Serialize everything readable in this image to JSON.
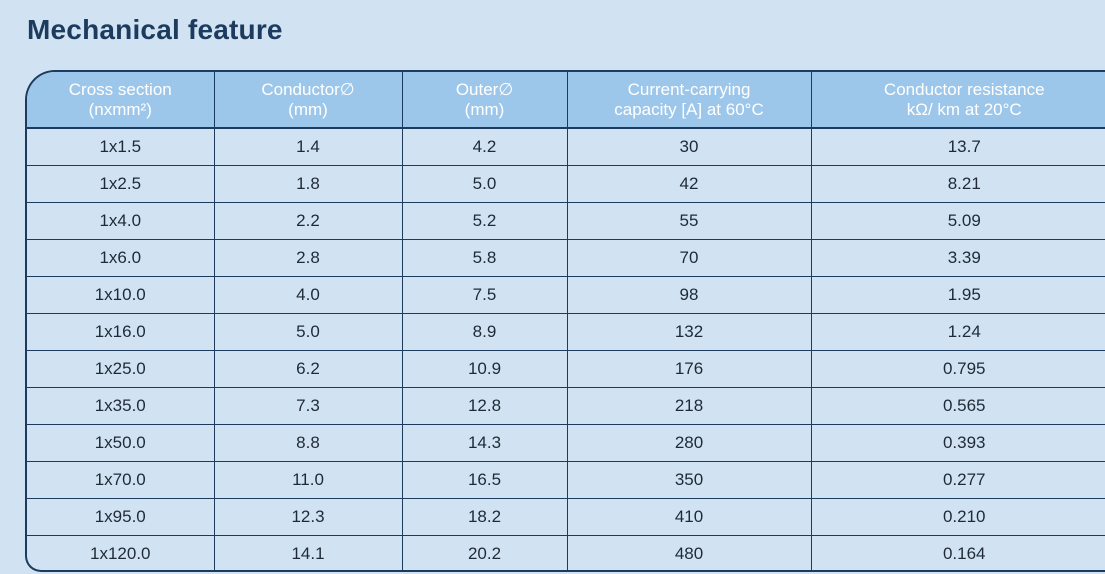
{
  "title": "Mechanical feature",
  "table": {
    "headers": [
      {
        "line1": "Cross section",
        "line2": "(nxmm²)"
      },
      {
        "line1": "Conductor∅",
        "line2": "(mm)"
      },
      {
        "line1": "Outer∅",
        "line2": "(mm)"
      },
      {
        "line1": "Current-carrying",
        "line2": "capacity [A] at 60°C"
      },
      {
        "line1": "Conductor resistance",
        "line2": "kΩ/ km at 20°C"
      }
    ],
    "rows": [
      [
        "1x1.5",
        "1.4",
        "4.2",
        "30",
        "13.7"
      ],
      [
        "1x2.5",
        "1.8",
        "5.0",
        "42",
        "8.21"
      ],
      [
        "1x4.0",
        "2.2",
        "5.2",
        "55",
        "5.09"
      ],
      [
        "1x6.0",
        "2.8",
        "5.8",
        "70",
        "3.39"
      ],
      [
        "1x10.0",
        "4.0",
        "7.5",
        "98",
        "1.95"
      ],
      [
        "1x16.0",
        "5.0",
        "8.9",
        "132",
        "1.24"
      ],
      [
        "1x25.0",
        "6.2",
        "10.9",
        "176",
        "0.795"
      ],
      [
        "1x35.0",
        "7.3",
        "12.8",
        "218",
        "0.565"
      ],
      [
        "1x50.0",
        "8.8",
        "14.3",
        "280",
        "0.393"
      ],
      [
        "1x70.0",
        "11.0",
        "16.5",
        "350",
        "0.277"
      ],
      [
        "1x95.0",
        "12.3",
        "18.2",
        "410",
        "0.210"
      ],
      [
        "1x120.0",
        "14.1",
        "20.2",
        "480",
        "0.164"
      ]
    ]
  }
}
